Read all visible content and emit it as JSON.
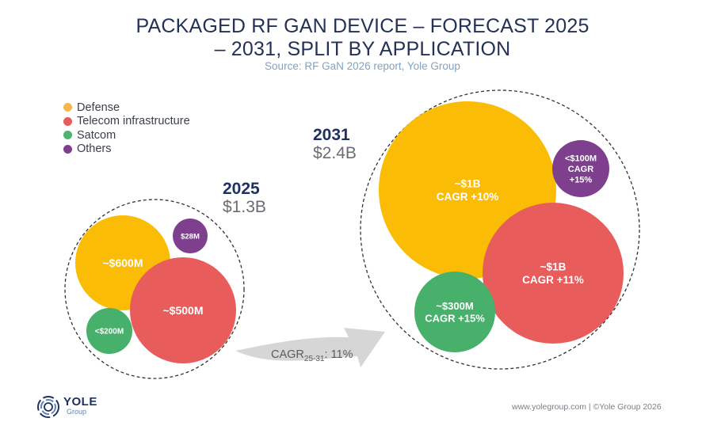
{
  "header": {
    "title_line1": "PACKAGED RF GAN DEVICE – FORECAST 2025",
    "title_line2": "– 2031, SPLIT BY APPLICATION",
    "source": "Source: RF GaN 2026 report, Yole Group"
  },
  "legend": [
    {
      "label": "Defense",
      "color": "#F5B84A"
    },
    {
      "label": "Telecom infrastructure",
      "color": "#E85B5B"
    },
    {
      "label": "Satcom",
      "color": "#4DB36E"
    },
    {
      "label": "Others",
      "color": "#7E3F8F"
    }
  ],
  "years": {
    "y2025": {
      "year": "2025",
      "total": "$1.3B"
    },
    "y2031": {
      "year": "2031",
      "total": "$2.4B"
    }
  },
  "growth_arrow": {
    "label_main": "CAGR",
    "label_sub": "25-31",
    "label_value": ": 11%"
  },
  "footer": {
    "url": "www.yolegroup.com | ©Yole Group 2026",
    "logo_name": "YOLE",
    "logo_sub": "Group"
  },
  "chart_data": {
    "type": "bubble",
    "title": "PACKAGED RF GAN DEVICE – FORECAST 2025 – 2031, SPLIT BY APPLICATION",
    "subtitle": "Source: RF GaN 2026 report, Yole Group",
    "legend_position": "top-left",
    "categories": [
      "Defense",
      "Telecom infrastructure",
      "Satcom",
      "Others"
    ],
    "colors": {
      "Defense": "#FBBC05",
      "Telecom infrastructure": "#E85C5C",
      "Satcom": "#47B06A",
      "Others": "#7E3F8F"
    },
    "series": [
      {
        "name": "2025",
        "total_label": "$1.3B",
        "total_musd": 1300,
        "values": [
          {
            "category": "Defense",
            "value_musd": 600,
            "label": "~$600M"
          },
          {
            "category": "Telecom infrastructure",
            "value_musd": 500,
            "label": "~$500M"
          },
          {
            "category": "Satcom",
            "value_musd": 200,
            "label": "<$200M"
          },
          {
            "category": "Others",
            "value_musd": 28,
            "label": "$28M"
          }
        ]
      },
      {
        "name": "2031",
        "total_label": "$2.4B",
        "total_musd": 2400,
        "values": [
          {
            "category": "Defense",
            "value_musd": 1000,
            "label": "~$1B",
            "cagr": "CAGR +10%"
          },
          {
            "category": "Telecom infrastructure",
            "value_musd": 1000,
            "label": "~$1B",
            "cagr": "CAGR +11%"
          },
          {
            "category": "Satcom",
            "value_musd": 300,
            "label": "~$300M",
            "cagr": "CAGR +15%"
          },
          {
            "category": "Others",
            "value_musd": 100,
            "label": "<$100M",
            "cagr": "CAGR +15%"
          }
        ]
      }
    ],
    "overall_cagr_2025_2031": "11%"
  }
}
